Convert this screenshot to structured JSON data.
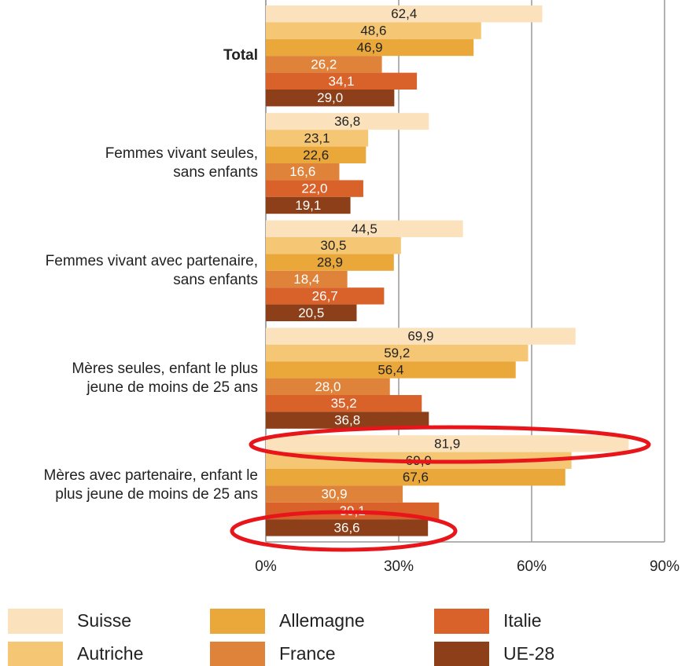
{
  "chart_data": {
    "type": "bar",
    "orientation": "horizontal",
    "categories": [
      "Total",
      "Femmes vivant seules,\nsans enfants",
      "Femmes vivant avec partenaire,\nsans enfants",
      "Mères seules, enfant le plus\njeune de moins de 25 ans",
      "Mères avec partenaire, enfant le\nplus jeune de moins de 25 ans"
    ],
    "series": [
      {
        "name": "Suisse",
        "color": "#fbe2bd",
        "values": [
          62.4,
          36.8,
          44.5,
          69.9,
          81.9
        ],
        "value_labels": [
          "62,4",
          "36,8",
          "44,5",
          "69,9",
          "81,9"
        ]
      },
      {
        "name": "Autriche",
        "color": "#f5c774",
        "values": [
          48.6,
          23.1,
          30.5,
          59.2,
          69.0
        ],
        "value_labels": [
          "48,6",
          "23,1",
          "30,5",
          "59,2",
          "69,0"
        ]
      },
      {
        "name": "Allemagne",
        "color": "#eba83a",
        "values": [
          46.9,
          22.6,
          28.9,
          56.4,
          67.6
        ],
        "value_labels": [
          "46,9",
          "22,6",
          "28,9",
          "56,4",
          "67,6"
        ]
      },
      {
        "name": "France",
        "color": "#e0833a",
        "values": [
          26.2,
          16.6,
          18.4,
          28.0,
          30.9
        ],
        "value_labels": [
          "26,2",
          "16,6",
          "18,4",
          "28,0",
          "30,9"
        ]
      },
      {
        "name": "Italie",
        "color": "#d9612a",
        "values": [
          34.1,
          22.0,
          26.7,
          35.2,
          39.1
        ],
        "value_labels": [
          "34,1",
          "22,0",
          "26,7",
          "35,2",
          "39,1"
        ]
      },
      {
        "name": "UE-28",
        "color": "#8c3f18",
        "values": [
          29.0,
          19.1,
          20.5,
          36.8,
          36.6
        ],
        "value_labels": [
          "29,0",
          "19,1",
          "20,5",
          "36,8",
          "36,6"
        ]
      }
    ],
    "xlim": [
      0,
      90
    ],
    "xticks": [
      {
        "value": 0,
        "label": "0%"
      },
      {
        "value": 30,
        "label": "30%"
      },
      {
        "value": 60,
        "label": "60%"
      },
      {
        "value": 90,
        "label": "90%"
      }
    ],
    "grid": true
  }
}
